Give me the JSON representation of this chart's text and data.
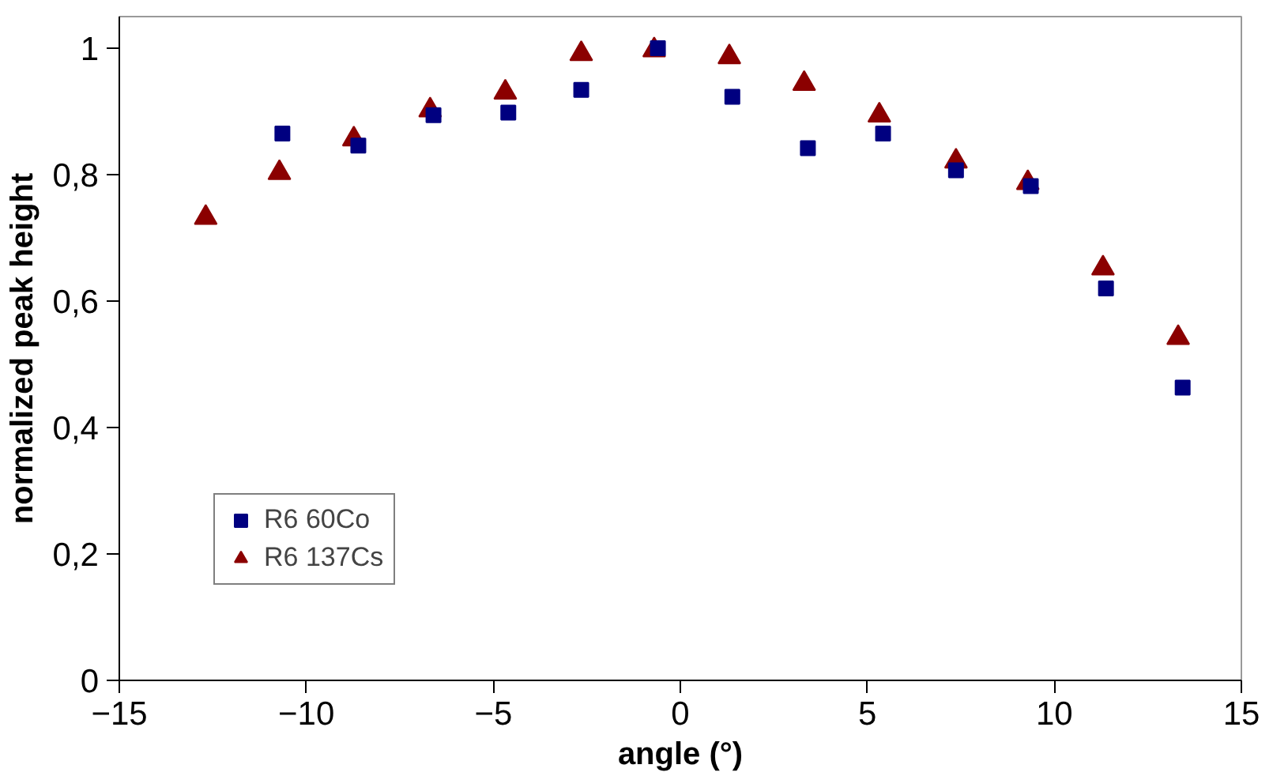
{
  "chart_data": {
    "type": "scatter",
    "xlabel": "angle (°)",
    "ylabel": "normalized peak height",
    "xlim": [
      -15,
      15
    ],
    "xticks": [
      -15,
      -10,
      -5,
      0,
      5,
      10,
      15
    ],
    "ylim": [
      0,
      1.05
    ],
    "yticks": [
      {
        "value": 0,
        "label": "0"
      },
      {
        "value": 0.2,
        "label": "0,2"
      },
      {
        "value": 0.4,
        "label": "0,4"
      },
      {
        "value": 0.6,
        "label": "0,6"
      },
      {
        "value": 0.8,
        "label": "0,8"
      },
      {
        "value": 1,
        "label": "1"
      }
    ],
    "grid": false,
    "legend": "bottom left",
    "series": [
      {
        "name": "R6 60Co",
        "color": "#000080",
        "marker": "square",
        "x": [
          -10.64,
          -8.61,
          -6.6,
          -4.6,
          -2.65,
          -0.6,
          1.39,
          3.41,
          5.42,
          7.37,
          9.37,
          11.38,
          13.43
        ],
        "values": [
          0.865,
          0.846,
          0.894,
          0.898,
          0.934,
          1.0,
          0.923,
          0.842,
          0.865,
          0.807,
          0.782,
          0.62,
          0.463
        ]
      },
      {
        "name": "R6 137Cs",
        "color": "#8b0000",
        "marker": "triangle",
        "x": [
          -12.69,
          -10.72,
          -8.73,
          -6.69,
          -4.68,
          -2.65,
          -0.7,
          1.31,
          3.31,
          5.32,
          7.37,
          9.29,
          11.3,
          13.31
        ],
        "values": [
          0.732,
          0.803,
          0.856,
          0.902,
          0.93,
          0.991,
          0.997,
          0.986,
          0.944,
          0.894,
          0.821,
          0.787,
          0.652,
          0.542
        ]
      }
    ]
  }
}
